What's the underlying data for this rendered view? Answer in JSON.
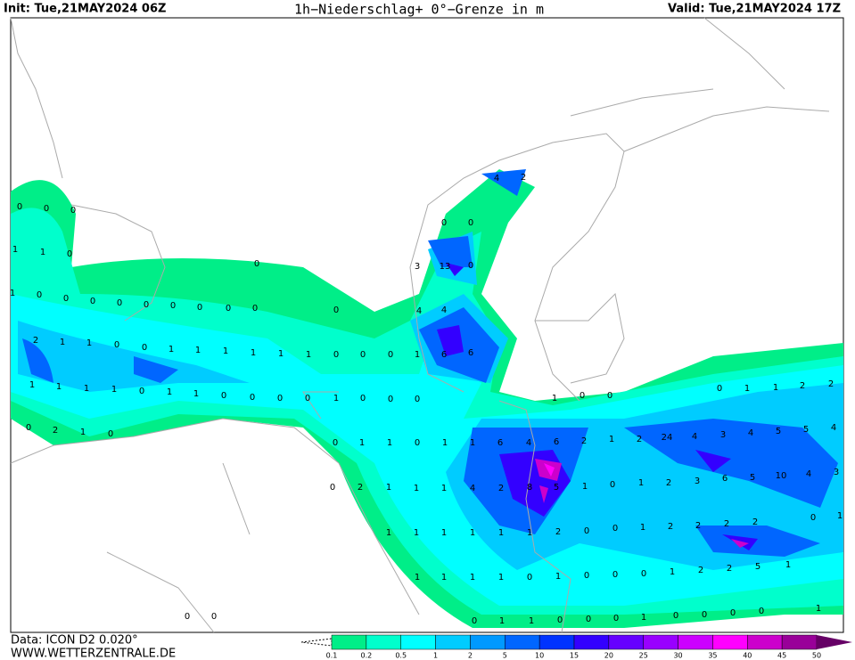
{
  "header": {
    "init": "Init: Tue,21MAY2024 06Z",
    "title": "1h−Niederschlag+ 0°−Grenze in m",
    "valid": "Valid: Tue,21MAY2024 17Z"
  },
  "footer": {
    "data": "Data: ICON D2 0.020°",
    "site": "WWW.WETTERZENTRALE.DE"
  },
  "colorbar": {
    "labels": [
      0.1,
      0.2,
      0.5,
      1,
      2,
      5,
      10,
      15,
      20,
      25,
      30,
      35,
      40,
      45,
      50
    ],
    "colors": [
      "#00ee88",
      "#00ffcc",
      "#00ffff",
      "#00ccff",
      "#0099ff",
      "#0066ff",
      "#0033ff",
      "#3300ff",
      "#6600ff",
      "#9900ff",
      "#cc00ff",
      "#ff00ff",
      "#cc00cc",
      "#990099",
      "#660066"
    ]
  },
  "map": {
    "labels": [
      0,
      0,
      0,
      1,
      1,
      0,
      0,
      3,
      13,
      0,
      4,
      2,
      0,
      0,
      1,
      0,
      0,
      0,
      0,
      0,
      0,
      0,
      0,
      0,
      0,
      4,
      4,
      2,
      1,
      1,
      0,
      0,
      1,
      1,
      1,
      1,
      1,
      1,
      0,
      0,
      0,
      1,
      6,
      6,
      1,
      1,
      1,
      1,
      0,
      1,
      1,
      0,
      0,
      0,
      0,
      1,
      0,
      0,
      0,
      1,
      0,
      0,
      0,
      1,
      1,
      2,
      2,
      0,
      2,
      1,
      0,
      0,
      1,
      1,
      0,
      1,
      1,
      6,
      4,
      6,
      2,
      1,
      2,
      24,
      4,
      3,
      4,
      5,
      5,
      4,
      0,
      2,
      1,
      1,
      1,
      4,
      2,
      8,
      5,
      1,
      0,
      1,
      2,
      3,
      6,
      5,
      10,
      4,
      3,
      0,
      1,
      1,
      1,
      1,
      1,
      1,
      1,
      2,
      0,
      0,
      1,
      2,
      2,
      2,
      2,
      1,
      1,
      1,
      1,
      1,
      0,
      1,
      0,
      0,
      0,
      1,
      2,
      2,
      5,
      1,
      0,
      1,
      1,
      0,
      0,
      0,
      1,
      0,
      0,
      0,
      0,
      0,
      0
    ]
  }
}
